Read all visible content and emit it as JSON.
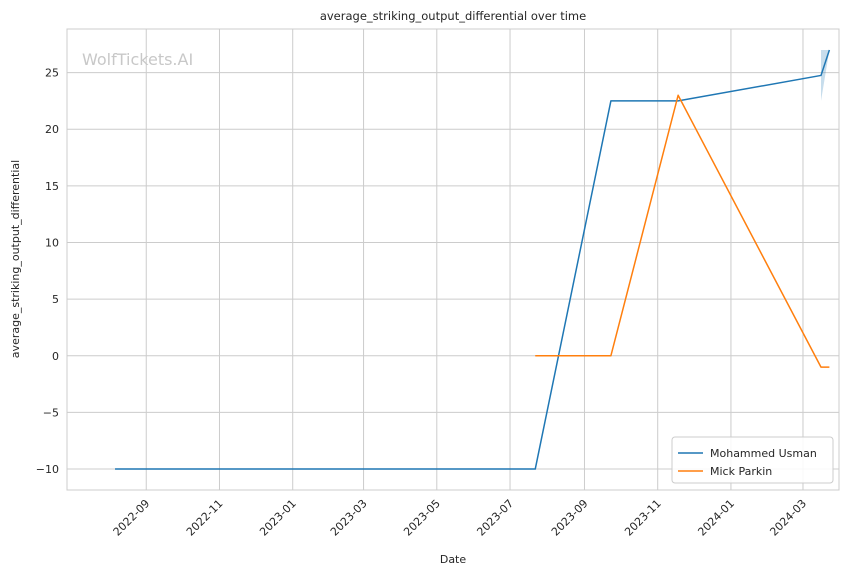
{
  "chart_data": {
    "type": "line",
    "title": "average_striking_output_differential over time",
    "xlabel": "Date",
    "ylabel": "average_striking_output_differential",
    "watermark": "WolfTickets.AI",
    "grid": true,
    "legend_position": "bottom-right",
    "xlim": [
      "2022-06-27",
      "2024-03-31"
    ],
    "ylim": [
      -11.85,
      28.85
    ],
    "x_ticks": [
      "2022-09",
      "2022-11",
      "2023-01",
      "2023-03",
      "2023-05",
      "2023-07",
      "2023-09",
      "2023-11",
      "2024-01",
      "2024-03"
    ],
    "y_ticks": [
      -10,
      -5,
      0,
      5,
      10,
      15,
      20,
      25
    ],
    "y_tick_labels": [
      "−10",
      "−5",
      "0",
      "5",
      "10",
      "15",
      "20",
      "25"
    ],
    "series": [
      {
        "name": "Mohammed Usman",
        "color": "#1f77b4",
        "points": [
          {
            "x": "2022-08-06",
            "y": -10
          },
          {
            "x": "2023-07-22",
            "y": -10
          },
          {
            "x": "2023-09-23",
            "y": 22.5
          },
          {
            "x": "2023-11-18",
            "y": 22.5
          },
          {
            "x": "2024-03-16",
            "y": 24.75
          },
          {
            "x": "2024-03-23",
            "y": 27
          }
        ],
        "band": [
          {
            "x": "2024-03-16",
            "low": 22.5,
            "high": 27
          },
          {
            "x": "2024-03-23",
            "low": 27,
            "high": 27
          }
        ]
      },
      {
        "name": "Mick Parkin",
        "color": "#ff7f0e",
        "points": [
          {
            "x": "2023-07-22",
            "y": 0
          },
          {
            "x": "2023-09-23",
            "y": 0
          },
          {
            "x": "2023-11-18",
            "y": 23
          },
          {
            "x": "2024-03-16",
            "y": -1
          },
          {
            "x": "2024-03-23",
            "y": -1
          }
        ]
      }
    ]
  }
}
